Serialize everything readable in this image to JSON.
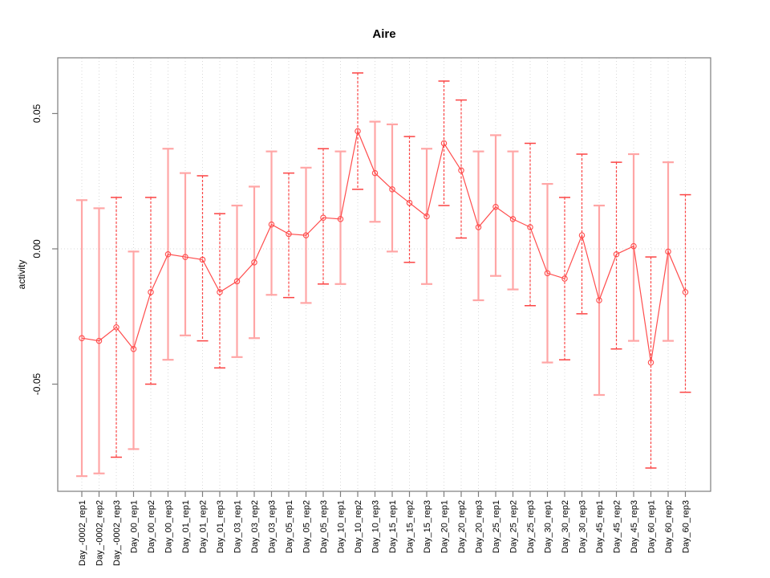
{
  "page": {
    "background": "#ffffff"
  },
  "chart_data": {
    "type": "line",
    "title": "Aire",
    "ylabel": "activity",
    "xlabel": "",
    "legend": "none",
    "grid": {
      "vertical": "dotted line at every category",
      "horizontal": "dotted line at y=0 only"
    },
    "ylim": [
      -0.0896,
      0.0706
    ],
    "yticks": {
      "values": [
        -0.05,
        0.0,
        0.05
      ],
      "labels": [
        "-0.05",
        "0.00",
        "0.05"
      ]
    },
    "categories": [
      "Day_-0002_rep1",
      "Day_-0002_rep2",
      "Day_-0002_rep3",
      "Day_00_rep1",
      "Day_00_rep2",
      "Day_00_rep3",
      "Day_01_rep1",
      "Day_01_rep2",
      "Day_01_rep3",
      "Day_03_rep1",
      "Day_03_rep2",
      "Day_03_rep3",
      "Day_05_rep1",
      "Day_05_rep2",
      "Day_05_rep3",
      "Day_10_rep1",
      "Day_10_rep2",
      "Day_10_rep3",
      "Day_15_rep1",
      "Day_15_rep2",
      "Day_15_rep3",
      "Day_20_rep1",
      "Day_20_rep2",
      "Day_20_rep3",
      "Day_25_rep1",
      "Day_25_rep2",
      "Day_25_rep3",
      "Day_30_rep1",
      "Day_30_rep2",
      "Day_30_rep3",
      "Day_45_rep1",
      "Day_45_rep2",
      "Day_45_rep3",
      "Day_60_rep1",
      "Day_60_rep2",
      "Day_60_rep3"
    ],
    "series": [
      {
        "name": "activity",
        "values": [
          -0.033,
          -0.034,
          -0.029,
          -0.037,
          -0.016,
          -0.002,
          -0.003,
          -0.004,
          -0.016,
          -0.012,
          -0.005,
          0.009,
          0.0055,
          0.005,
          0.0115,
          0.011,
          0.0435,
          0.028,
          0.022,
          0.017,
          0.012,
          0.039,
          0.029,
          0.008,
          0.0155,
          0.011,
          0.008,
          -0.009,
          -0.011,
          0.005,
          -0.019,
          -0.002,
          0.001,
          -0.042,
          -0.001,
          -0.016
        ],
        "error_upper": [
          0.018,
          0.015,
          0.019,
          -0.001,
          0.019,
          0.037,
          0.028,
          0.027,
          0.013,
          0.016,
          0.023,
          0.036,
          0.028,
          0.03,
          0.037,
          0.036,
          0.065,
          0.047,
          0.046,
          0.0415,
          0.037,
          0.062,
          0.055,
          0.036,
          0.042,
          0.036,
          0.039,
          0.024,
          0.019,
          0.035,
          0.016,
          0.032,
          0.035,
          -0.003,
          0.032,
          0.02
        ],
        "error_lower": [
          -0.084,
          -0.083,
          -0.077,
          -0.074,
          -0.05,
          -0.041,
          -0.032,
          -0.034,
          -0.044,
          -0.04,
          -0.033,
          -0.017,
          -0.018,
          -0.02,
          -0.013,
          -0.013,
          0.022,
          0.01,
          -0.001,
          -0.005,
          -0.013,
          0.016,
          0.004,
          -0.019,
          -0.01,
          -0.015,
          -0.021,
          -0.042,
          -0.041,
          -0.024,
          -0.054,
          -0.037,
          -0.034,
          -0.081,
          -0.034,
          -0.053
        ],
        "error_bar_styles": [
          "solid",
          "solid",
          "dashed",
          "solid",
          "dashed",
          "solid",
          "solid",
          "dashed",
          "dashed",
          "solid",
          "solid",
          "solid",
          "dashed",
          "solid",
          "dashed",
          "solid",
          "dashed",
          "solid",
          "solid",
          "dashed",
          "solid",
          "dashed",
          "dashed",
          "solid",
          "solid",
          "solid",
          "dashed",
          "solid",
          "dashed",
          "dashed",
          "solid",
          "dashed",
          "solid",
          "dashed",
          "solid",
          "dashed"
        ]
      }
    ],
    "colors": {
      "line": "#ff4d4d",
      "marker": "#ff4d4d",
      "errorbar_solid": "#ffa6a6",
      "errorbar_dashed": "#fb4343",
      "grid": "#d9d9d9",
      "box": "#7d7d7d",
      "text": "#000000"
    }
  }
}
